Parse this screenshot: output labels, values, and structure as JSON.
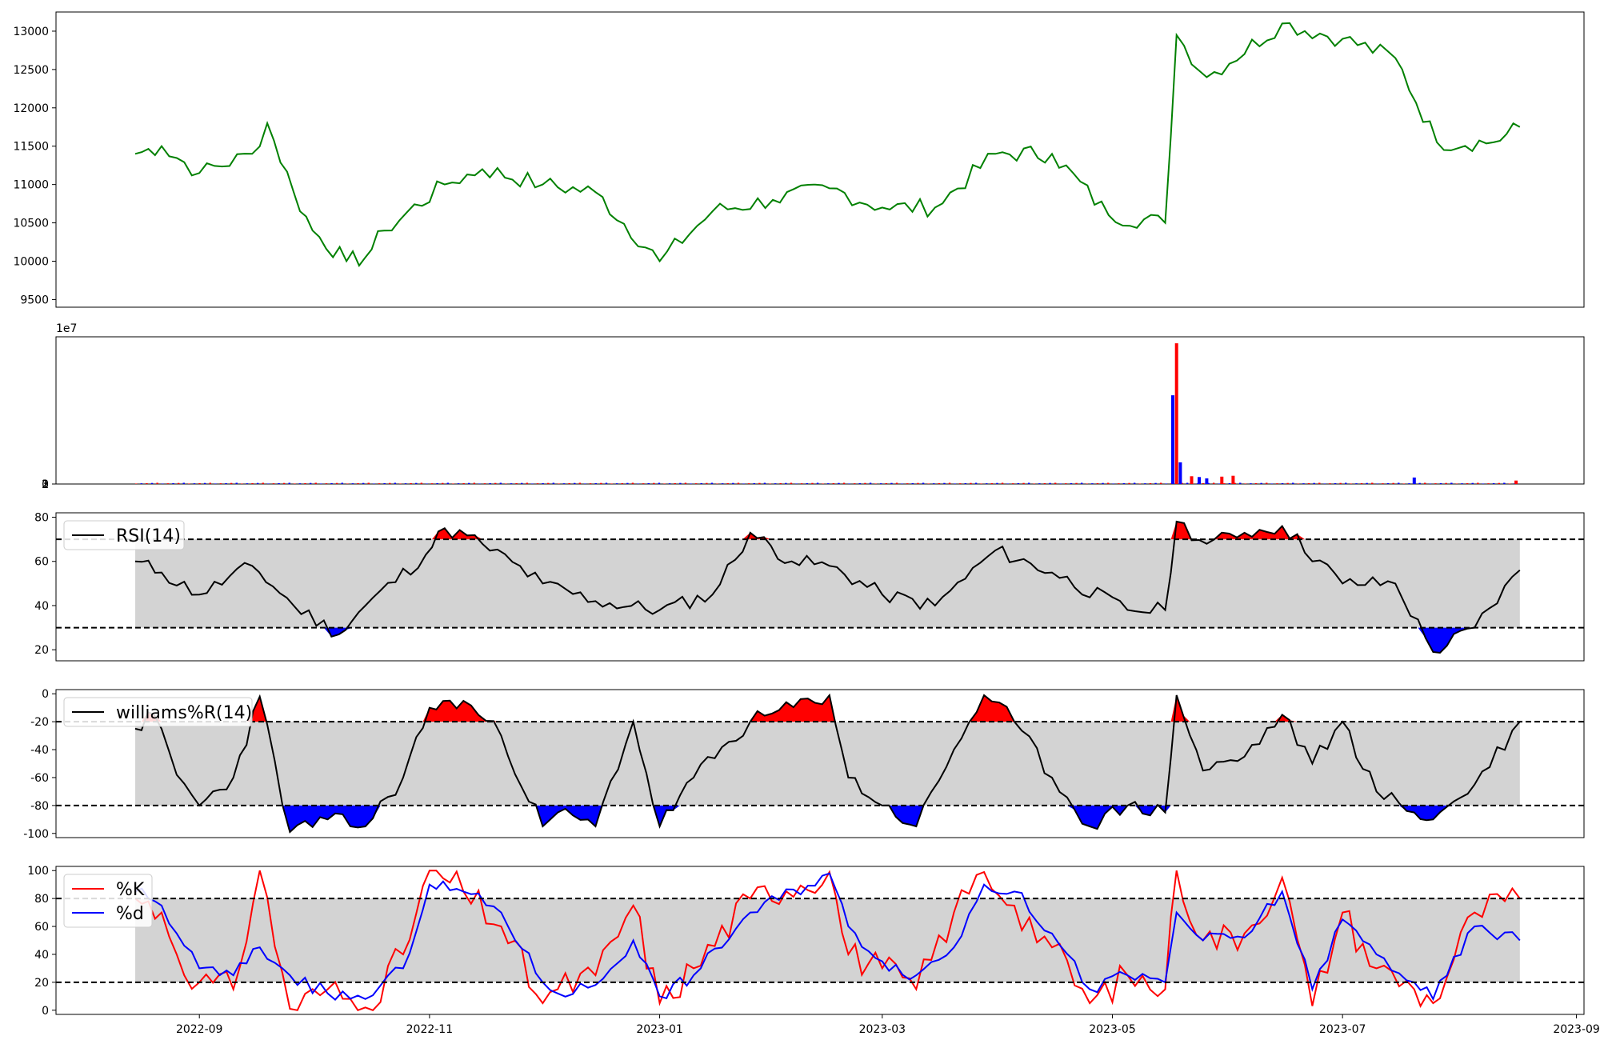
{
  "x_tick_labels": [
    "2022-09",
    "2022-11",
    "2023-01",
    "2023-03",
    "2023-05",
    "2023-07",
    "2023-09"
  ],
  "x_range": [
    "2022-07-25",
    "2023-09-03"
  ],
  "chart_data": [
    {
      "type": "line",
      "name": "price",
      "color": "#008000",
      "ylim": [
        9400,
        13250
      ],
      "yticks": [
        9500,
        10000,
        10500,
        11000,
        11500,
        12000,
        12500,
        13000
      ],
      "x": [
        "2022-08-15",
        "2022-08-22",
        "2022-09-01",
        "2022-09-15",
        "2022-09-19",
        "2022-09-26",
        "2022-10-01",
        "2022-10-10",
        "2022-10-15",
        "2022-10-20",
        "2022-11-05",
        "2022-11-15",
        "2022-12-01",
        "2022-12-15",
        "2023-01-01",
        "2023-01-15",
        "2023-01-31",
        "2023-02-15",
        "2023-03-01",
        "2023-03-15",
        "2023-03-31",
        "2023-04-15",
        "2023-04-30",
        "2023-05-15",
        "2023-05-18",
        "2023-05-26",
        "2023-06-15",
        "2023-07-01",
        "2023-07-15",
        "2023-07-26",
        "2023-08-10",
        "2023-08-17"
      ],
      "values": [
        11400,
        11500,
        11150,
        11400,
        11800,
        10900,
        10400,
        10000,
        10050,
        10400,
        11000,
        11200,
        11000,
        10900,
        10000,
        10650,
        10800,
        10950,
        10700,
        10700,
        11400,
        11400,
        10600,
        10500,
        12950,
        12400,
        13100,
        12900,
        12650,
        11550,
        11550,
        11750
      ]
    },
    {
      "type": "bar",
      "name": "volume",
      "colors": [
        "#ff0000",
        "#0000ff"
      ],
      "ylim": [
        0,
        34000000.0
      ],
      "yticks": [
        0,
        1,
        2,
        3
      ],
      "scale_label": "1e7",
      "spikes": [
        {
          "x": "2023-05-17",
          "value": 20500000.0,
          "color": "#0000ff"
        },
        {
          "x": "2023-05-18",
          "value": 32500000.0,
          "color": "#ff0000"
        },
        {
          "x": "2023-05-19",
          "value": 5000000.0,
          "color": "#0000ff"
        },
        {
          "x": "2023-05-22",
          "value": 1800000.0,
          "color": "#ff0000"
        },
        {
          "x": "2023-05-24",
          "value": 1600000.0,
          "color": "#0000ff"
        },
        {
          "x": "2023-05-26",
          "value": 1300000.0,
          "color": "#0000ff"
        },
        {
          "x": "2023-05-30",
          "value": 1700000.0,
          "color": "#ff0000"
        },
        {
          "x": "2023-06-02",
          "value": 1900000.0,
          "color": "#ff0000"
        },
        {
          "x": "2023-07-20",
          "value": 1500000.0,
          "color": "#0000ff"
        },
        {
          "x": "2023-08-16",
          "value": 800000.0,
          "color": "#ff0000"
        }
      ],
      "baseline_range": [
        "2022-08-15",
        "2023-08-16"
      ],
      "baseline_value": 200000.0
    },
    {
      "type": "line",
      "name": "RSI(14)",
      "legend": "RSI(14)",
      "color": "#000000",
      "ylim": [
        15,
        82
      ],
      "yticks": [
        20,
        40,
        60,
        80
      ],
      "thresholds": [
        30,
        70
      ],
      "fill_above_color": "#ff0000",
      "fill_below_color": "#0000ff",
      "band_color": "#d3d3d3",
      "x": [
        "2022-08-15",
        "2022-08-22",
        "2022-09-01",
        "2022-09-15",
        "2022-09-26",
        "2022-10-08",
        "2022-10-15",
        "2022-10-31",
        "2022-11-05",
        "2022-11-15",
        "2022-12-01",
        "2022-12-15",
        "2023-01-01",
        "2023-01-15",
        "2023-01-25",
        "2023-02-05",
        "2023-02-15",
        "2023-03-01",
        "2023-03-15",
        "2023-03-31",
        "2023-04-15",
        "2023-05-05",
        "2023-05-15",
        "2023-05-18",
        "2023-05-26",
        "2023-06-05",
        "2023-06-15",
        "2023-07-01",
        "2023-07-15",
        "2023-07-25",
        "2023-08-05",
        "2023-08-17"
      ],
      "values": [
        60,
        55,
        45,
        58,
        40,
        27,
        40,
        63,
        75,
        68,
        50,
        42,
        38,
        45,
        73,
        60,
        58,
        45,
        40,
        65,
        55,
        38,
        38,
        78,
        68,
        73,
        76,
        50,
        50,
        19,
        30,
        56
      ]
    },
    {
      "type": "line",
      "name": "williams%R(14)",
      "legend": "williams%R(14)",
      "color": "#000000",
      "ylim": [
        -103,
        3
      ],
      "yticks": [
        -100,
        -80,
        -60,
        -40,
        -20,
        0
      ],
      "thresholds": [
        -80,
        -20
      ],
      "fill_above_color": "#ff0000",
      "fill_below_color": "#0000ff",
      "band_color": "#d3d3d3",
      "x": [
        "2022-08-15",
        "2022-08-20",
        "2022-08-26",
        "2022-09-01",
        "2022-09-10",
        "2022-09-17",
        "2022-09-25",
        "2022-10-05",
        "2022-10-15",
        "2022-10-25",
        "2022-11-01",
        "2022-11-10",
        "2022-11-20",
        "2022-12-01",
        "2022-12-05",
        "2022-12-15",
        "2022-12-25",
        "2023-01-01",
        "2023-01-10",
        "2023-01-25",
        "2023-02-15",
        "2023-02-20",
        "2023-03-01",
        "2023-03-10",
        "2023-03-20",
        "2023-03-28",
        "2023-04-05",
        "2023-04-15",
        "2023-04-25",
        "2023-05-05",
        "2023-05-15",
        "2023-05-18",
        "2023-05-25",
        "2023-06-05",
        "2023-06-15",
        "2023-06-23",
        "2023-07-01",
        "2023-07-10",
        "2023-07-20",
        "2023-07-25",
        "2023-08-05",
        "2023-08-17"
      ],
      "values": [
        -25,
        -15,
        -58,
        -80,
        -60,
        -2,
        -99,
        -90,
        -95,
        -60,
        -10,
        -5,
        -30,
        -95,
        -85,
        -95,
        -20,
        -95,
        -60,
        -20,
        -1,
        -60,
        -80,
        -95,
        -40,
        -1,
        -20,
        -60,
        -95,
        -80,
        -85,
        -1,
        -55,
        -45,
        -15,
        -50,
        -20,
        -70,
        -85,
        -90,
        -65,
        -20
      ]
    },
    {
      "type": "line",
      "name": "stochastic",
      "ylim": [
        -3,
        103
      ],
      "yticks": [
        0,
        20,
        40,
        60,
        80,
        100
      ],
      "thresholds": [
        20,
        80
      ],
      "band_color": "#d3d3d3",
      "legend": [
        "%K",
        "%d"
      ],
      "series": [
        {
          "name": "%K",
          "color": "#ff0000",
          "x": [
            "2022-08-15",
            "2022-08-22",
            "2022-08-26",
            "2022-09-01",
            "2022-09-10",
            "2022-09-17",
            "2022-09-25",
            "2022-10-05",
            "2022-10-15",
            "2022-10-25",
            "2022-11-01",
            "2022-11-10",
            "2022-11-20",
            "2022-12-01",
            "2022-12-05",
            "2022-12-15",
            "2022-12-25",
            "2023-01-01",
            "2023-01-10",
            "2023-01-25",
            "2023-02-15",
            "2023-02-20",
            "2023-03-01",
            "2023-03-10",
            "2023-03-20",
            "2023-03-28",
            "2023-04-05",
            "2023-04-15",
            "2023-04-25",
            "2023-05-05",
            "2023-05-15",
            "2023-05-18",
            "2023-05-25",
            "2023-06-05",
            "2023-06-15",
            "2023-06-23",
            "2023-07-01",
            "2023-07-10",
            "2023-07-20",
            "2023-07-25",
            "2023-08-05",
            "2023-08-17"
          ],
          "values": [
            80,
            70,
            40,
            20,
            15,
            100,
            1,
            15,
            2,
            40,
            100,
            85,
            60,
            5,
            15,
            25,
            75,
            5,
            30,
            80,
            99,
            40,
            30,
            15,
            70,
            99,
            75,
            45,
            5,
            25,
            15,
            100,
            50,
            55,
            95,
            3,
            70,
            30,
            15,
            5,
            70,
            80
          ]
        },
        {
          "name": "%d",
          "color": "#0000ff",
          "x": [
            "2022-08-15",
            "2022-08-22",
            "2022-08-26",
            "2022-09-01",
            "2022-09-10",
            "2022-09-17",
            "2022-09-25",
            "2022-10-05",
            "2022-10-15",
            "2022-10-25",
            "2022-11-01",
            "2022-11-10",
            "2022-11-20",
            "2022-12-01",
            "2022-12-05",
            "2022-12-15",
            "2022-12-25",
            "2023-01-01",
            "2023-01-10",
            "2023-01-25",
            "2023-02-15",
            "2023-02-20",
            "2023-03-01",
            "2023-03-10",
            "2023-03-20",
            "2023-03-28",
            "2023-04-05",
            "2023-04-15",
            "2023-04-25",
            "2023-05-05",
            "2023-05-15",
            "2023-05-18",
            "2023-05-25",
            "2023-06-05",
            "2023-06-15",
            "2023-06-23",
            "2023-07-01",
            "2023-07-10",
            "2023-07-20",
            "2023-07-25",
            "2023-08-05",
            "2023-08-17"
          ],
          "values": [
            85,
            75,
            55,
            30,
            25,
            45,
            25,
            12,
            8,
            30,
            90,
            85,
            70,
            20,
            12,
            18,
            50,
            10,
            25,
            70,
            98,
            60,
            35,
            25,
            45,
            90,
            85,
            55,
            15,
            25,
            20,
            70,
            50,
            52,
            85,
            15,
            65,
            40,
            20,
            8,
            60,
            50
          ]
        }
      ]
    }
  ]
}
